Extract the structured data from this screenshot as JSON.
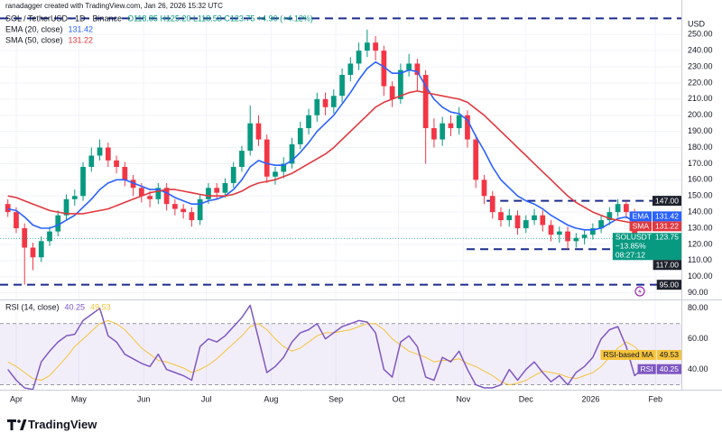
{
  "chart_data": {
    "type": "candlestick",
    "header": {
      "credit": "ranadagger created with TradingView.com, Jan 26, 2026 15:32 UTC",
      "symbol": "SOL / TetherUSD · 1D · Binance",
      "ohlc": "O118.85 H125.20 L118.53 C123.75 +4.90 (+4.12%)"
    },
    "up_color": "#089981",
    "down_color": "#f23645",
    "candles": {
      "open": [
        145,
        140,
        130,
        118,
        112,
        122,
        128,
        138,
        148,
        150,
        168,
        175,
        180,
        172,
        168,
        160,
        155,
        150,
        148,
        155,
        145,
        142,
        140,
        135,
        148,
        155,
        152,
        158,
        168,
        178,
        195,
        185,
        162,
        165,
        170,
        182,
        192,
        200,
        210,
        205,
        212,
        225,
        232,
        240,
        245,
        240,
        218,
        210,
        228,
        232,
        225,
        192,
        185,
        195,
        192,
        200,
        185,
        160,
        150,
        140,
        135,
        138,
        130,
        135,
        138,
        132,
        126,
        128,
        122,
        124,
        126,
        130,
        135,
        140,
        145,
        140,
        118.85
      ],
      "high": [
        148,
        143,
        133,
        121,
        125,
        131,
        141,
        151,
        154,
        171,
        180,
        185,
        183,
        175,
        171,
        163,
        158,
        153,
        158,
        158,
        148,
        145,
        143,
        151,
        158,
        158,
        161,
        171,
        181,
        206,
        200,
        188,
        168,
        174,
        186,
        196,
        204,
        214,
        214,
        216,
        229,
        236,
        245,
        253,
        249,
        243,
        221,
        232,
        238,
        235,
        228,
        198,
        199,
        200,
        205,
        203,
        188,
        163,
        153,
        143,
        142,
        141,
        138,
        142,
        141,
        135,
        131,
        131,
        127,
        129,
        133,
        138,
        143,
        148,
        147,
        142,
        125.2
      ],
      "low": [
        137,
        127,
        95,
        104,
        109,
        119,
        125,
        135,
        144,
        147,
        165,
        172,
        168,
        164,
        156,
        150,
        146,
        143,
        145,
        141,
        138,
        136,
        131,
        132,
        145,
        148,
        149,
        155,
        165,
        175,
        181,
        158,
        157,
        161,
        167,
        179,
        188,
        196,
        200,
        201,
        208,
        221,
        228,
        236,
        234,
        212,
        205,
        207,
        224,
        215,
        170,
        180,
        181,
        187,
        188,
        180,
        155,
        145,
        136,
        131,
        131,
        126,
        127,
        132,
        128,
        122,
        121,
        117,
        118,
        120,
        123,
        127,
        132,
        137,
        136,
        116,
        118.53
      ],
      "close": [
        140,
        130,
        118,
        112,
        122,
        128,
        138,
        148,
        150,
        168,
        175,
        180,
        172,
        168,
        160,
        155,
        150,
        148,
        155,
        145,
        142,
        140,
        135,
        148,
        155,
        152,
        158,
        168,
        178,
        195,
        185,
        162,
        165,
        170,
        182,
        192,
        200,
        210,
        205,
        212,
        225,
        232,
        240,
        245,
        240,
        218,
        210,
        228,
        232,
        225,
        192,
        185,
        195,
        192,
        200,
        185,
        160,
        150,
        140,
        135,
        138,
        130,
        135,
        138,
        132,
        126,
        128,
        122,
        124,
        126,
        130,
        135,
        140,
        145,
        140,
        118.85,
        123.75
      ]
    },
    "xlim": [
      -0.4,
      80.6
    ],
    "xticks": [
      {
        "value": 1,
        "label": "Apr"
      },
      {
        "value": 8.5,
        "label": "May"
      },
      {
        "value": 16.25,
        "label": "Jun"
      },
      {
        "value": 23.75,
        "label": "Jul"
      },
      {
        "value": 31.5,
        "label": "Aug"
      },
      {
        "value": 39.25,
        "label": "Sep"
      },
      {
        "value": 46.75,
        "label": "Oct"
      },
      {
        "value": 54.5,
        "label": "Nov"
      },
      {
        "value": 62,
        "label": "Dec"
      },
      {
        "value": 69.75,
        "label": "2026"
      },
      {
        "value": 77.5,
        "label": "Feb"
      }
    ],
    "ylim": [
      87,
      263
    ],
    "y_unit": "USD",
    "yticks": [
      {
        "value": 90,
        "label": "90.00"
      },
      {
        "value": 100,
        "label": "100.00"
      },
      {
        "value": 110,
        "label": "110.00"
      },
      {
        "value": 120,
        "label": "120.00"
      },
      {
        "value": 130,
        "label": "130.00"
      },
      {
        "value": 140,
        "label": "140.00"
      },
      {
        "value": 150,
        "label": "150.00"
      },
      {
        "value": 160,
        "label": "160.00"
      },
      {
        "value": 170,
        "label": "170.00"
      },
      {
        "value": 180,
        "label": "180.00"
      },
      {
        "value": 190,
        "label": "190.00"
      },
      {
        "value": 200,
        "label": "200.00"
      },
      {
        "value": 210,
        "label": "210.00"
      },
      {
        "value": 220,
        "label": "220.00"
      },
      {
        "value": 230,
        "label": "230.00"
      },
      {
        "value": 240,
        "label": "240.00"
      },
      {
        "value": 250,
        "label": "250.00"
      }
    ],
    "overlays": [
      {
        "name": "EMA (20, close)",
        "label": "EMA",
        "color": "#2962ff",
        "values": [
          142,
          141,
          137,
          132,
          130,
          130,
          132,
          135,
          138,
          143,
          148,
          154,
          158,
          160,
          160,
          158,
          156,
          154,
          154,
          152,
          149,
          147,
          145,
          145,
          147,
          148,
          150,
          154,
          160,
          168,
          172,
          170,
          169,
          169,
          172,
          177,
          183,
          190,
          195,
          200,
          207,
          214,
          222,
          229,
          233,
          230,
          226,
          226,
          228,
          227,
          218,
          210,
          205,
          202,
          201,
          197,
          187,
          178,
          168,
          160,
          155,
          150,
          147,
          145,
          142,
          138,
          135,
          132,
          130,
          129,
          129,
          130,
          133,
          136,
          137,
          134,
          131.42
        ]
      },
      {
        "name": "SMA (50, close)",
        "label": "SMA",
        "color": "#e0383e",
        "values": [
          150,
          149,
          147,
          145,
          143,
          141,
          140,
          139,
          139,
          139,
          140,
          141,
          142,
          144,
          146,
          148,
          150,
          152,
          153,
          154,
          154,
          153,
          152,
          151,
          150,
          150,
          150,
          151,
          153,
          156,
          158,
          159,
          160,
          162,
          164,
          167,
          170,
          173,
          176,
          180,
          185,
          190,
          195,
          200,
          205,
          208,
          210,
          212,
          214,
          215,
          214,
          213,
          212,
          211,
          210,
          208,
          204,
          200,
          195,
          190,
          185,
          180,
          175,
          170,
          165,
          160,
          155,
          150,
          146,
          143,
          140,
          138,
          136,
          135,
          134,
          133,
          131.22
        ]
      }
    ],
    "level_color": "#1c2c8c",
    "levels": [
      {
        "value": 260
      },
      {
        "value": 147,
        "label": "147.00",
        "start": 57.3
      },
      {
        "value": 117,
        "label": "117.00",
        "start": 54.9
      },
      {
        "value": 95,
        "label": "95.00"
      }
    ],
    "last_price": {
      "label": "SOLUSDT",
      "change": "−13.85%",
      "countdown": "08:27:12"
    },
    "rsi": {
      "name": "RSI (14, close)",
      "label": "RSI",
      "color": "#7e57c2",
      "values": [
        40,
        33,
        28,
        27,
        45,
        52,
        58,
        62,
        63,
        72,
        76,
        80,
        62,
        58,
        50,
        47,
        44,
        42,
        50,
        40,
        38,
        36,
        33,
        55,
        60,
        58,
        62,
        68,
        74,
        82,
        60,
        38,
        42,
        48,
        58,
        64,
        66,
        70,
        60,
        64,
        68,
        70,
        72,
        71,
        64,
        40,
        35,
        58,
        62,
        55,
        35,
        33,
        48,
        45,
        52,
        40,
        30,
        28,
        28,
        30,
        40,
        33,
        40,
        45,
        38,
        32,
        36,
        30,
        38,
        42,
        48,
        60,
        66,
        68,
        55,
        36,
        40.25
      ],
      "ma_label": "RSI-based MA",
      "ma_color": "#f5c33b",
      "ma_values": [
        45,
        42,
        38,
        34,
        33,
        36,
        42,
        48,
        55,
        60,
        65,
        70,
        72,
        70,
        66,
        60,
        54,
        50,
        46,
        45,
        43,
        41,
        38,
        40,
        43,
        47,
        52,
        57,
        62,
        68,
        70,
        66,
        60,
        55,
        52,
        54,
        58,
        62,
        64,
        64,
        65,
        66,
        68,
        70,
        70,
        66,
        60,
        56,
        52,
        50,
        48,
        45,
        46,
        46,
        47,
        44,
        42,
        39,
        36,
        32,
        30,
        31,
        33,
        36,
        39,
        38,
        37,
        35,
        34,
        36,
        38,
        42,
        48,
        54,
        58,
        55,
        49.53
      ],
      "ylim": [
        28,
        84
      ],
      "yticks": [
        {
          "value": 40,
          "label": "40.00"
        },
        {
          "value": 60,
          "label": "60.00"
        },
        {
          "value": 80,
          "label": "80.00"
        }
      ],
      "bands": [
        30,
        70
      ]
    },
    "watermark": "TradingView"
  }
}
